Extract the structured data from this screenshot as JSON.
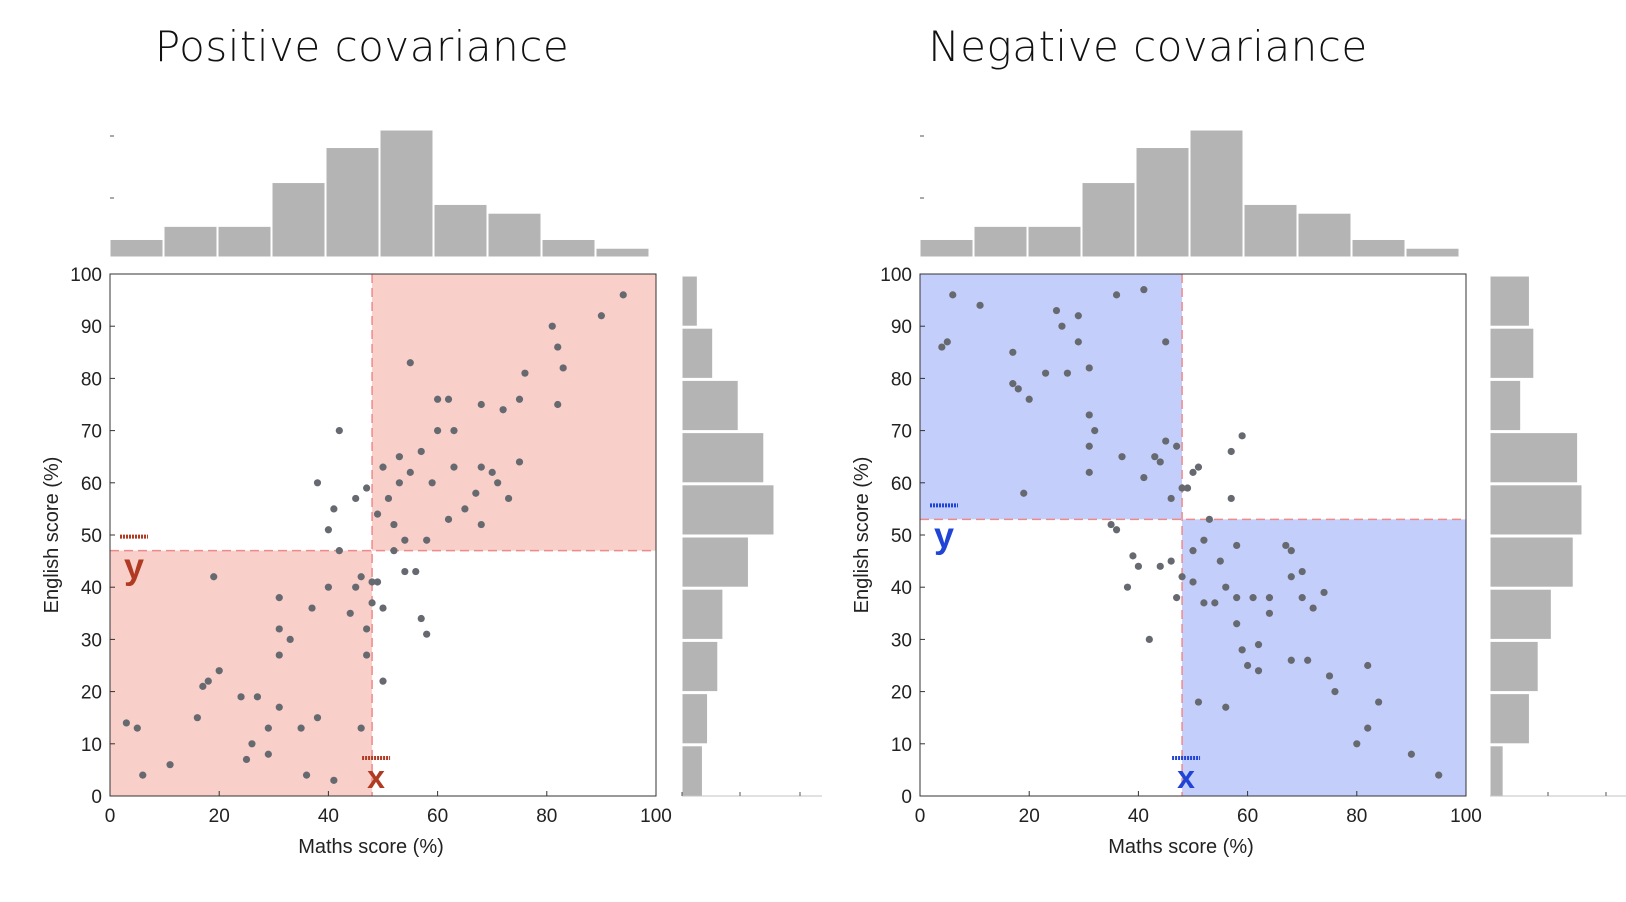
{
  "chart_data": [
    {
      "type": "scatter",
      "title": "Positive covariance",
      "xlabel": "Maths score (%)",
      "ylabel": "English score (%)",
      "xlim": [
        0,
        100
      ],
      "ylim": [
        0,
        100
      ],
      "xticks": [
        "0",
        "20",
        "40",
        "60",
        "80",
        "100"
      ],
      "yticks": [
        "0",
        "10",
        "20",
        "30",
        "40",
        "50",
        "60",
        "70",
        "80",
        "90",
        "100"
      ],
      "mean_x": 48,
      "mean_y": 47,
      "shading_color": "#f8cfc9",
      "annotation_color": "#b03a22",
      "annotation_x": "x",
      "annotation_y": "y",
      "shaded_quadrants": [
        "bottom-left",
        "top-right"
      ],
      "points": [
        [
          3,
          14
        ],
        [
          5,
          13
        ],
        [
          6,
          4
        ],
        [
          11,
          6
        ],
        [
          16,
          15
        ],
        [
          17,
          21
        ],
        [
          18,
          22
        ],
        [
          19,
          42
        ],
        [
          20,
          24
        ],
        [
          24,
          19
        ],
        [
          25,
          7
        ],
        [
          26,
          10
        ],
        [
          27,
          19
        ],
        [
          29,
          8
        ],
        [
          29,
          13
        ],
        [
          31,
          17
        ],
        [
          31,
          27
        ],
        [
          31,
          32
        ],
        [
          31,
          38
        ],
        [
          33,
          30
        ],
        [
          35,
          13
        ],
        [
          36,
          4
        ],
        [
          37,
          36
        ],
        [
          38,
          15
        ],
        [
          38,
          60
        ],
        [
          40,
          40
        ],
        [
          40,
          51
        ],
        [
          41,
          3
        ],
        [
          41,
          55
        ],
        [
          42,
          47
        ],
        [
          42,
          70
        ],
        [
          44,
          35
        ],
        [
          45,
          40
        ],
        [
          45,
          57
        ],
        [
          46,
          13
        ],
        [
          46,
          42
        ],
        [
          47,
          27
        ],
        [
          47,
          32
        ],
        [
          47,
          59
        ],
        [
          48,
          37
        ],
        [
          48,
          41
        ],
        [
          49,
          41
        ],
        [
          49,
          54
        ],
        [
          50,
          22
        ],
        [
          50,
          36
        ],
        [
          50,
          63
        ],
        [
          51,
          57
        ],
        [
          52,
          47
        ],
        [
          52,
          52
        ],
        [
          53,
          60
        ],
        [
          53,
          65
        ],
        [
          54,
          43
        ],
        [
          54,
          49
        ],
        [
          55,
          62
        ],
        [
          55,
          83
        ],
        [
          56,
          43
        ],
        [
          57,
          34
        ],
        [
          57,
          66
        ],
        [
          58,
          31
        ],
        [
          58,
          49
        ],
        [
          59,
          60
        ],
        [
          60,
          70
        ],
        [
          60,
          76
        ],
        [
          62,
          53
        ],
        [
          62,
          76
        ],
        [
          63,
          63
        ],
        [
          63,
          70
        ],
        [
          65,
          55
        ],
        [
          67,
          58
        ],
        [
          68,
          52
        ],
        [
          68,
          63
        ],
        [
          68,
          75
        ],
        [
          70,
          62
        ],
        [
          71,
          60
        ],
        [
          72,
          74
        ],
        [
          73,
          57
        ],
        [
          75,
          64
        ],
        [
          75,
          76
        ],
        [
          76,
          81
        ],
        [
          81,
          90
        ],
        [
          82,
          75
        ],
        [
          82,
          86
        ],
        [
          83,
          82
        ],
        [
          90,
          92
        ],
        [
          94,
          96
        ]
      ],
      "top_hist": [
        4,
        7,
        7,
        17,
        25,
        29,
        12,
        10,
        4,
        2
      ],
      "side_hist": [
        3,
        6,
        11,
        16,
        18,
        13,
        8,
        7,
        5,
        4
      ]
    },
    {
      "type": "scatter",
      "title": "Negative covariance",
      "xlabel": "Maths score (%)",
      "ylabel": "English score (%)",
      "xlim": [
        0,
        100
      ],
      "ylim": [
        0,
        100
      ],
      "xticks": [
        "0",
        "20",
        "40",
        "60",
        "80",
        "100"
      ],
      "yticks": [
        "0",
        "10",
        "20",
        "30",
        "40",
        "50",
        "60",
        "70",
        "80",
        "90",
        "100"
      ],
      "mean_x": 48,
      "mean_y": 53,
      "shading_color": "#c3cffa",
      "annotation_color": "#2044d6",
      "annotation_x": "x",
      "annotation_y": "y",
      "shaded_quadrants": [
        "top-left",
        "bottom-right"
      ],
      "points": [
        [
          4,
          86
        ],
        [
          6,
          96
        ],
        [
          5,
          87
        ],
        [
          11,
          94
        ],
        [
          17,
          85
        ],
        [
          17,
          79
        ],
        [
          18,
          78
        ],
        [
          19,
          58
        ],
        [
          20,
          76
        ],
        [
          23,
          81
        ],
        [
          25,
          93
        ],
        [
          26,
          90
        ],
        [
          27,
          81
        ],
        [
          29,
          92
        ],
        [
          29,
          87
        ],
        [
          31,
          73
        ],
        [
          31,
          82
        ],
        [
          31,
          67
        ],
        [
          31,
          62
        ],
        [
          32,
          70
        ],
        [
          35,
          52
        ],
        [
          36,
          51
        ],
        [
          36,
          96
        ],
        [
          37,
          65
        ],
        [
          38,
          40
        ],
        [
          39,
          46
        ],
        [
          40,
          44
        ],
        [
          41,
          61
        ],
        [
          41,
          97
        ],
        [
          42,
          30
        ],
        [
          43,
          65
        ],
        [
          44,
          44
        ],
        [
          44,
          64
        ],
        [
          45,
          68
        ],
        [
          45,
          87
        ],
        [
          46,
          45
        ],
        [
          46,
          57
        ],
        [
          47,
          38
        ],
        [
          47,
          67
        ],
        [
          48,
          59
        ],
        [
          48,
          42
        ],
        [
          49,
          59
        ],
        [
          50,
          41
        ],
        [
          50,
          47
        ],
        [
          50,
          62
        ],
        [
          51,
          63
        ],
        [
          51,
          18
        ],
        [
          52,
          37
        ],
        [
          52,
          49
        ],
        [
          53,
          53
        ],
        [
          54,
          37
        ],
        [
          55,
          45
        ],
        [
          56,
          17
        ],
        [
          56,
          40
        ],
        [
          57,
          57
        ],
        [
          57,
          66
        ],
        [
          58,
          38
        ],
        [
          58,
          33
        ],
        [
          58,
          48
        ],
        [
          59,
          28
        ],
        [
          59,
          69
        ],
        [
          60,
          25
        ],
        [
          61,
          38
        ],
        [
          62,
          29
        ],
        [
          62,
          24
        ],
        [
          64,
          38
        ],
        [
          64,
          35
        ],
        [
          67,
          48
        ],
        [
          68,
          47
        ],
        [
          68,
          26
        ],
        [
          68,
          42
        ],
        [
          70,
          38
        ],
        [
          70,
          43
        ],
        [
          71,
          26
        ],
        [
          72,
          36
        ],
        [
          74,
          39
        ],
        [
          75,
          23
        ],
        [
          76,
          20
        ],
        [
          80,
          10
        ],
        [
          82,
          13
        ],
        [
          82,
          25
        ],
        [
          84,
          18
        ],
        [
          90,
          8
        ],
        [
          95,
          4
        ]
      ],
      "top_hist": [
        4,
        7,
        7,
        17,
        25,
        29,
        12,
        10,
        4,
        2
      ],
      "side_hist": [
        9,
        10,
        7,
        20,
        21,
        19,
        14,
        11,
        9,
        3
      ]
    }
  ]
}
